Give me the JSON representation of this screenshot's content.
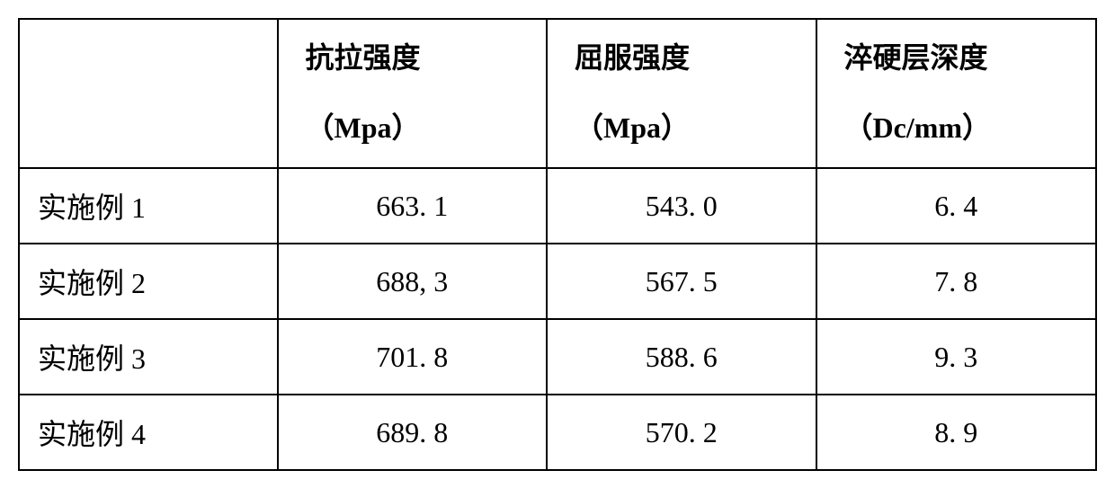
{
  "table": {
    "columns": [
      {
        "line1": "",
        "line2": ""
      },
      {
        "line1": "抗拉强度",
        "line2": "（Mpa）"
      },
      {
        "line1": "屈服强度",
        "line2": "（Mpa）"
      },
      {
        "line1": "淬硬层深度",
        "line2": "（Dc/mm）"
      }
    ],
    "rows": [
      {
        "label": "实施例 1",
        "values": [
          "663. 1",
          "543. 0",
          "6. 4"
        ]
      },
      {
        "label": "实施例 2",
        "values": [
          "688, 3",
          "567. 5",
          "7. 8"
        ]
      },
      {
        "label": "实施例 3",
        "values": [
          "701. 8",
          "588. 6",
          "9. 3"
        ]
      },
      {
        "label": "实施例 4",
        "values": [
          "689. 8",
          "570. 2",
          "8. 9"
        ]
      }
    ],
    "styling": {
      "border_color": "#000000",
      "border_width": 2,
      "background_color": "#ffffff",
      "text_color": "#000000",
      "font_family": "SimSun",
      "header_fontsize": 32,
      "data_fontsize": 32,
      "header_row_height": 166,
      "data_row_height": 84,
      "column_widths_pct": [
        24,
        25,
        25,
        26
      ],
      "header_alignment": [
        "left",
        "left",
        "left",
        "left"
      ],
      "row_label_alignment": "left",
      "data_alignment": "center"
    }
  }
}
